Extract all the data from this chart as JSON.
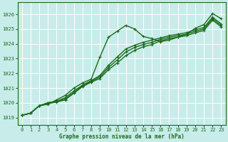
{
  "title": "Graphe pression niveau de la mer (hPa)",
  "bg_color": "#c8ecea",
  "grid_color": "#b0d8d5",
  "line_color": "#1a6b1a",
  "marker_color": "#1a6b1a",
  "ylim": [
    1018.5,
    1026.8
  ],
  "xlim": [
    -0.5,
    23.5
  ],
  "yticks": [
    1019,
    1020,
    1021,
    1022,
    1023,
    1024,
    1025,
    1026
  ],
  "xticks": [
    0,
    1,
    2,
    3,
    4,
    5,
    6,
    7,
    8,
    9,
    10,
    11,
    12,
    13,
    14,
    15,
    16,
    17,
    18,
    19,
    20,
    21,
    22,
    23
  ],
  "series": [
    {
      "x": [
        0,
        1,
        2,
        3,
        4,
        5,
        6,
        7,
        8,
        9,
        10,
        11,
        12,
        13,
        14,
        15,
        16,
        17,
        18,
        19,
        20,
        21,
        22,
        23
      ],
      "y": [
        1019.15,
        1019.3,
        1019.8,
        1019.9,
        1020.2,
        1020.5,
        1021.0,
        1021.35,
        1021.6,
        1023.1,
        1024.45,
        1024.85,
        1025.25,
        1025.0,
        1024.5,
        1024.35,
        1024.15,
        1024.25,
        1024.45,
        1024.65,
        1025.05,
        1025.3,
        1026.05,
        1025.7
      ],
      "marker": "+",
      "lw": 1.0
    },
    {
      "x": [
        0,
        1,
        2,
        3,
        4,
        5,
        6,
        7,
        8,
        9,
        10,
        11,
        12,
        13,
        14,
        15,
        16,
        17,
        18,
        19,
        20,
        21,
        22,
        23
      ],
      "y": [
        1019.15,
        1019.3,
        1019.8,
        1020.0,
        1020.1,
        1020.35,
        1020.8,
        1021.2,
        1021.5,
        1021.85,
        1022.55,
        1023.1,
        1023.65,
        1023.9,
        1024.1,
        1024.25,
        1024.4,
        1024.55,
        1024.65,
        1024.75,
        1024.95,
        1025.1,
        1025.8,
        1025.35
      ],
      "marker": "+",
      "lw": 1.0
    },
    {
      "x": [
        0,
        1,
        2,
        3,
        4,
        5,
        6,
        7,
        8,
        9,
        10,
        11,
        12,
        13,
        14,
        15,
        16,
        17,
        18,
        19,
        20,
        21,
        22,
        23
      ],
      "y": [
        1019.15,
        1019.3,
        1019.8,
        1020.0,
        1020.1,
        1020.25,
        1020.7,
        1021.15,
        1021.45,
        1021.75,
        1022.4,
        1022.9,
        1023.45,
        1023.75,
        1023.95,
        1024.1,
        1024.3,
        1024.45,
        1024.55,
        1024.65,
        1024.85,
        1025.0,
        1025.7,
        1025.25
      ],
      "marker": "+",
      "lw": 1.0
    },
    {
      "x": [
        0,
        1,
        2,
        3,
        4,
        5,
        6,
        7,
        8,
        9,
        10,
        11,
        12,
        13,
        14,
        15,
        16,
        17,
        18,
        19,
        20,
        21,
        22,
        23
      ],
      "y": [
        1019.15,
        1019.3,
        1019.8,
        1019.95,
        1020.05,
        1020.2,
        1020.65,
        1021.1,
        1021.4,
        1021.65,
        1022.25,
        1022.7,
        1023.2,
        1023.55,
        1023.8,
        1023.95,
        1024.2,
        1024.35,
        1024.45,
        1024.55,
        1024.75,
        1024.9,
        1025.6,
        1025.15
      ],
      "marker": "+",
      "lw": 1.0
    }
  ]
}
